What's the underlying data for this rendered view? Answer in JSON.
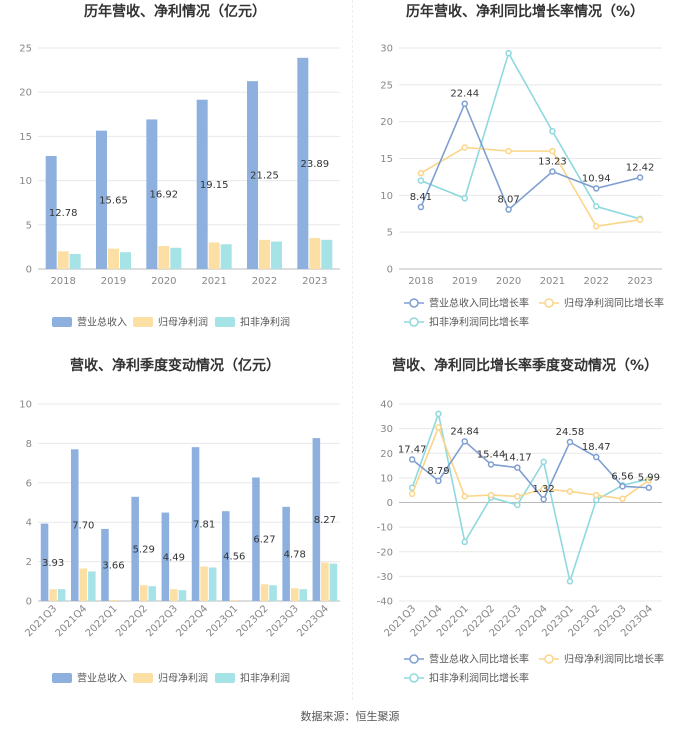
{
  "colors": {
    "revenue": "#8eb0de",
    "netprofit": "#fbdfa5",
    "deducted": "#a6e3e6",
    "revenue_line": "#7f9fd2",
    "netprofit_line": "#fbd589",
    "deducted_line": "#8fd9de"
  },
  "source": "数据来源：恒生聚源",
  "chart_data": [
    {
      "type": "bar",
      "title": "历年营收、净利情况（亿元）",
      "categories": [
        "2018",
        "2019",
        "2020",
        "2021",
        "2022",
        "2023"
      ],
      "series": [
        {
          "name": "营业总收入",
          "values": [
            12.78,
            15.65,
            16.92,
            19.15,
            21.25,
            23.89
          ]
        },
        {
          "name": "归母净利润",
          "values": [
            2.0,
            2.3,
            2.6,
            3.0,
            3.3,
            3.5
          ]
        },
        {
          "name": "扣非净利润",
          "values": [
            1.7,
            1.9,
            2.4,
            2.8,
            3.1,
            3.3
          ]
        }
      ],
      "data_labels": [
        "12.78",
        "15.65",
        "16.92",
        "19.15",
        "21.25",
        "23.89"
      ],
      "ylim": [
        0,
        25
      ],
      "yticks": [
        0,
        5,
        10,
        15,
        20,
        25
      ]
    },
    {
      "type": "line",
      "title": "历年营收、净利同比增长率情况（%）",
      "categories": [
        "2018",
        "2019",
        "2020",
        "2021",
        "2022",
        "2023"
      ],
      "series": [
        {
          "name": "营业总收入同比增长率",
          "values": [
            8.41,
            22.44,
            8.07,
            13.23,
            10.94,
            12.42
          ]
        },
        {
          "name": "归母净利润同比增长率",
          "values": [
            13.0,
            16.5,
            16.0,
            16.0,
            5.8,
            6.7
          ]
        },
        {
          "name": "扣非净利润同比增长率",
          "values": [
            12.0,
            9.6,
            29.3,
            18.7,
            8.5,
            6.8
          ]
        }
      ],
      "data_labels": [
        "8.41",
        "22.44",
        "8.07",
        "13.23",
        "10.94",
        "12.42"
      ],
      "ylim": [
        0,
        30
      ],
      "yticks": [
        0,
        5,
        10,
        15,
        20,
        25,
        30
      ]
    },
    {
      "type": "bar",
      "title": "营收、净利季度变动情况（亿元）",
      "categories": [
        "2021Q3",
        "2021Q4",
        "2022Q1",
        "2022Q2",
        "2022Q3",
        "2022Q4",
        "2023Q1",
        "2023Q2",
        "2023Q3",
        "2023Q4"
      ],
      "series": [
        {
          "name": "营业总收入",
          "values": [
            3.93,
            7.7,
            3.66,
            5.29,
            4.49,
            7.81,
            4.56,
            6.27,
            4.78,
            8.27
          ]
        },
        {
          "name": "归母净利润",
          "values": [
            0.6,
            1.65,
            0.05,
            0.8,
            0.6,
            1.75,
            0.05,
            0.85,
            0.65,
            1.95
          ]
        },
        {
          "name": "扣非净利润",
          "values": [
            0.6,
            1.5,
            0.0,
            0.75,
            0.55,
            1.7,
            0.0,
            0.8,
            0.6,
            1.9
          ]
        }
      ],
      "data_labels": [
        "3.93",
        "7.70",
        "3.66",
        "5.29",
        "4.49",
        "7.81",
        "4.56",
        "6.27",
        "4.78",
        "8.27"
      ],
      "ylim": [
        0,
        10
      ],
      "yticks": [
        0,
        2,
        4,
        6,
        8,
        10
      ]
    },
    {
      "type": "line",
      "title": "营收、净利同比增长率季度变动情况（%）",
      "categories": [
        "2021Q3",
        "2021Q4",
        "2022Q1",
        "2022Q2",
        "2022Q3",
        "2022Q4",
        "2023Q1",
        "2023Q2",
        "2023Q3",
        "2023Q4"
      ],
      "series": [
        {
          "name": "营业总收入同比增长率",
          "values": [
            17.47,
            8.79,
            24.84,
            15.44,
            14.17,
            1.32,
            24.58,
            18.47,
            6.56,
            5.99
          ]
        },
        {
          "name": "归母净利润同比增长率",
          "values": [
            3.5,
            30.5,
            2.5,
            3.0,
            2.5,
            5.5,
            4.5,
            3.0,
            1.5,
            9.0
          ]
        },
        {
          "name": "扣非净利润同比增长率",
          "values": [
            6.0,
            36.0,
            -16.0,
            2.0,
            -1.0,
            16.5,
            -32.0,
            1.0,
            7.0,
            9.5
          ]
        }
      ],
      "data_labels": [
        "17.47",
        "8.79",
        "24.84",
        "15.44",
        "14.17",
        "1.32",
        "24.58",
        "18.47",
        "6.56",
        "5.99"
      ],
      "ylim": [
        -40,
        40
      ],
      "yticks": [
        -40,
        -30,
        -20,
        -10,
        0,
        10,
        20,
        30,
        40
      ]
    }
  ]
}
